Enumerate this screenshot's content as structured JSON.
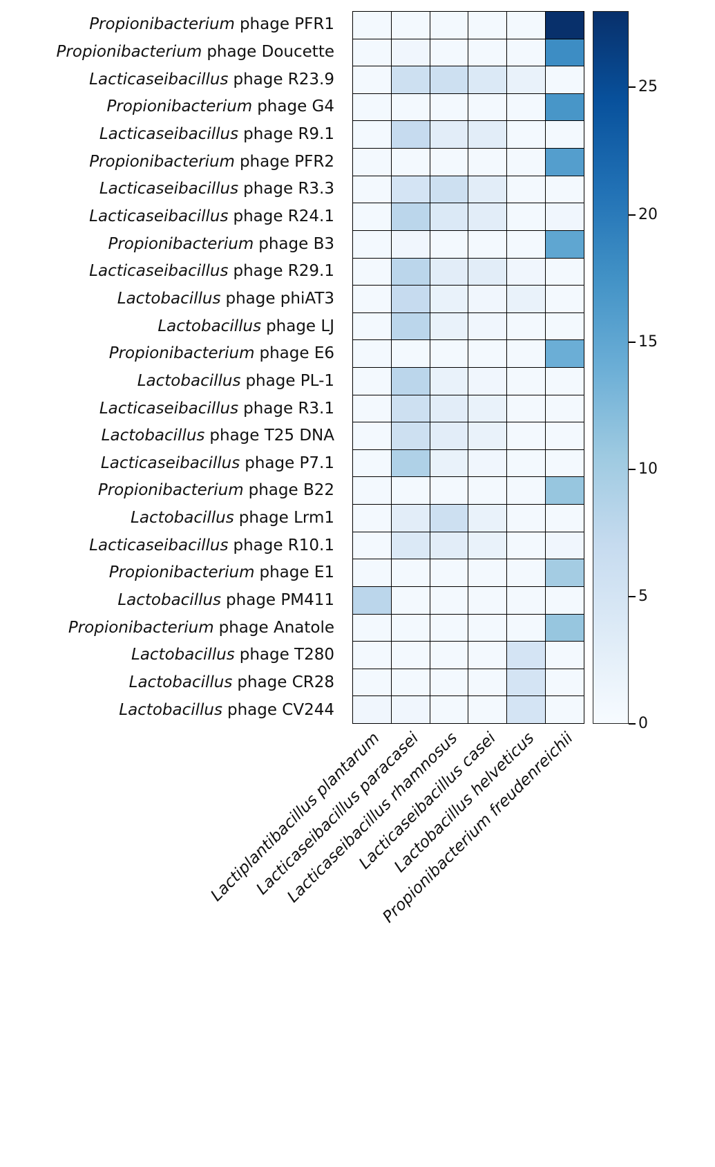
{
  "chart_data": {
    "type": "heatmap",
    "title": "",
    "colormap": "Blues",
    "vmin": 0,
    "vmax": 28,
    "grid_line_color": "#000000",
    "colormap_stops": [
      "#f7fbff",
      "#deebf7",
      "#c6dbef",
      "#9ecae1",
      "#6baed6",
      "#4292c6",
      "#2171b5",
      "#08519c",
      "#08306b"
    ],
    "columns": [
      "Lactiplantibacillus plantarum",
      "Lacticaseibacillus paracasei",
      "Lacticaseibacillus rhamnosus",
      "Lacticaseibacillus casei",
      "Lactobacillus helveticus",
      "Propionibacterium freudenreichii"
    ],
    "rows": [
      {
        "genus": "Propionibacterium",
        "rest": "phage PFR1"
      },
      {
        "genus": "Propionibacterium",
        "rest": "phage Doucette"
      },
      {
        "genus": "Lacticaseibacillus",
        "rest": "phage R23.9"
      },
      {
        "genus": "Propionibacterium",
        "rest": "phage G4"
      },
      {
        "genus": "Lacticaseibacillus",
        "rest": "phage R9.1"
      },
      {
        "genus": "Propionibacterium",
        "rest": "phage PFR2"
      },
      {
        "genus": "Lacticaseibacillus",
        "rest": "phage R3.3"
      },
      {
        "genus": "Lacticaseibacillus",
        "rest": "phage R24.1"
      },
      {
        "genus": "Propionibacterium",
        "rest": "phage B3"
      },
      {
        "genus": "Lacticaseibacillus",
        "rest": "phage R29.1"
      },
      {
        "genus": "Lactobacillus",
        "rest": "phage phiAT3"
      },
      {
        "genus": "Lactobacillus",
        "rest": "phage LJ"
      },
      {
        "genus": "Propionibacterium",
        "rest": "phage E6"
      },
      {
        "genus": "Lactobacillus",
        "rest": "phage PL-1"
      },
      {
        "genus": "Lacticaseibacillus",
        "rest": "phage R3.1"
      },
      {
        "genus": "Lactobacillus",
        "rest": "phage T25 DNA"
      },
      {
        "genus": "Lacticaseibacillus",
        "rest": "phage P7.1"
      },
      {
        "genus": "Propionibacterium",
        "rest": "phage B22"
      },
      {
        "genus": "Lactobacillus",
        "rest": "phage Lrm1"
      },
      {
        "genus": "Lacticaseibacillus",
        "rest": "phage R10.1"
      },
      {
        "genus": "Propionibacterium",
        "rest": "phage E1"
      },
      {
        "genus": "Lactobacillus",
        "rest": "phage PM411"
      },
      {
        "genus": "Propionibacterium",
        "rest": "phage Anatole"
      },
      {
        "genus": "Lactobacillus",
        "rest": "phage T280"
      },
      {
        "genus": "Lactobacillus",
        "rest": "phage CR28"
      },
      {
        "genus": "Lactobacillus",
        "rest": "phage CV244"
      }
    ],
    "values": [
      [
        0.5,
        0.5,
        0.5,
        0.5,
        0.5,
        28
      ],
      [
        0.5,
        1,
        0.5,
        0.5,
        0.5,
        18
      ],
      [
        0.5,
        6,
        6,
        4,
        2,
        0.5
      ],
      [
        0.5,
        0.5,
        0.5,
        0.5,
        0.5,
        17
      ],
      [
        0.5,
        7,
        3,
        3,
        0.5,
        0.5
      ],
      [
        0.5,
        0.5,
        0.5,
        0.5,
        0.5,
        16
      ],
      [
        0.5,
        5,
        6,
        3,
        0.5,
        0.5
      ],
      [
        0.5,
        8,
        4,
        3,
        0.5,
        1
      ],
      [
        0.5,
        1,
        0.5,
        0.5,
        0.5,
        15
      ],
      [
        0.5,
        8,
        3,
        3,
        1,
        0.5
      ],
      [
        0.5,
        7,
        2,
        1,
        2,
        0.5
      ],
      [
        0.5,
        8,
        2,
        1,
        0.5,
        0.5
      ],
      [
        0.5,
        0.5,
        0.5,
        0.5,
        0.5,
        14
      ],
      [
        0.5,
        8,
        2,
        1,
        0.5,
        0.5
      ],
      [
        0.5,
        6,
        3,
        2,
        0.5,
        0.5
      ],
      [
        0.5,
        6,
        3,
        2,
        0.5,
        0.5
      ],
      [
        0.5,
        9,
        2,
        1,
        0.5,
        0.5
      ],
      [
        0.5,
        0.5,
        0.5,
        0.5,
        0.5,
        11
      ],
      [
        0.5,
        3,
        6,
        2,
        0.5,
        0.5
      ],
      [
        0.5,
        4,
        3,
        2,
        0.5,
        1
      ],
      [
        0.5,
        0.5,
        0.5,
        0.5,
        0.5,
        10
      ],
      [
        8,
        0.5,
        0.5,
        0.5,
        0.5,
        0.5
      ],
      [
        0.5,
        0.5,
        0.5,
        0.5,
        0.5,
        11
      ],
      [
        0.5,
        0.5,
        0.5,
        0.5,
        5,
        0.5
      ],
      [
        0.5,
        0.5,
        0.5,
        0.5,
        5,
        0.5
      ],
      [
        1,
        1,
        0.5,
        0.5,
        5,
        0.5
      ]
    ],
    "colorbar_ticks": [
      0,
      5,
      10,
      15,
      20,
      25
    ],
    "legend_position": "right-colorbar",
    "grid": true
  }
}
